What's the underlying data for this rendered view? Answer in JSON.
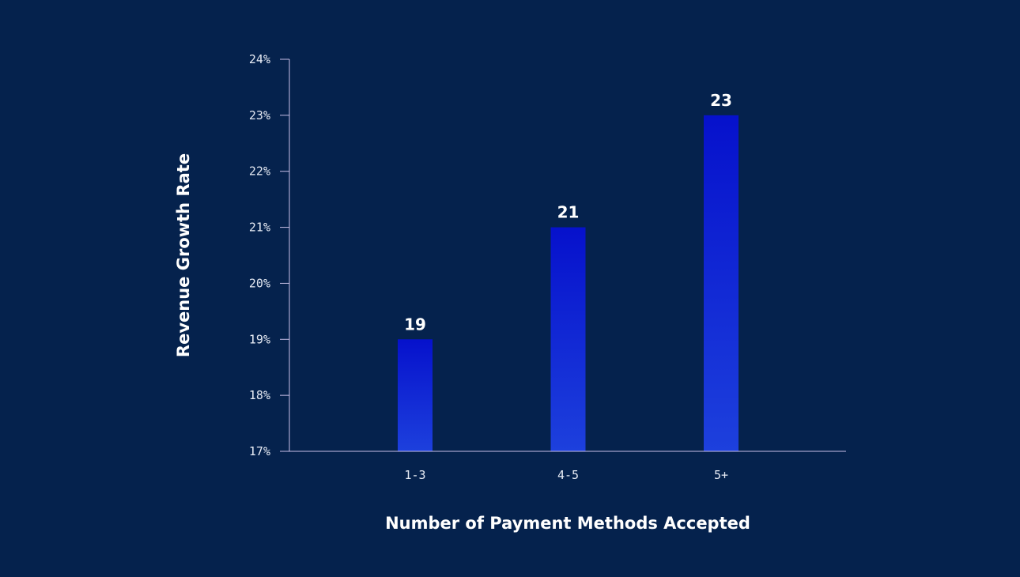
{
  "chart_data": {
    "type": "bar",
    "categories": [
      "1-3",
      "4-5",
      "5+"
    ],
    "values": [
      19,
      21,
      23
    ],
    "data_labels": [
      "19",
      "21",
      "23"
    ],
    "title": "",
    "xlabel": "Number of Payment Methods Accepted",
    "ylabel": "Revenue Growth Rate",
    "ylim": [
      17,
      24
    ],
    "yticks": [
      "17%",
      "18%",
      "19%",
      "20%",
      "21%",
      "22%",
      "23%",
      "24%"
    ],
    "grid": false,
    "legend": "none",
    "colors": {
      "background": "#05224d",
      "bar_top": "#0611cc",
      "bar_bottom": "#1d40dd",
      "axis": "#c9bfe6",
      "text": "#ffffff"
    }
  }
}
